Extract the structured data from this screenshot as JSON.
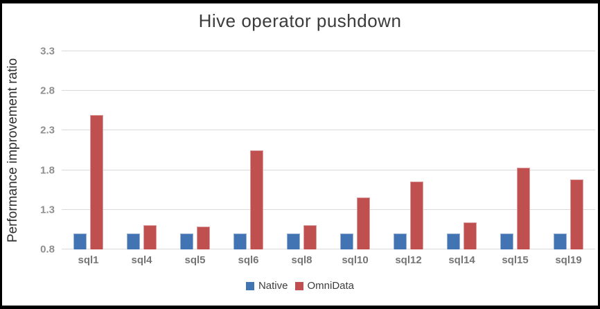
{
  "window": {
    "background": "#ffffff",
    "frame_color": "#000000"
  },
  "chart_data": {
    "type": "bar",
    "title": "Hive operator pushdown",
    "xlabel": "",
    "ylabel": "Performance improvement ratio",
    "categories": [
      "sql1",
      "sql4",
      "sql5",
      "sql6",
      "sql8",
      "sql10",
      "sql12",
      "sql14",
      "sql15",
      "sql19"
    ],
    "series": [
      {
        "name": "Native",
        "color": "#4273b3",
        "values": [
          1.0,
          1.0,
          1.0,
          1.0,
          1.0,
          1.0,
          1.0,
          1.0,
          1.0,
          1.0
        ]
      },
      {
        "name": "OmniData",
        "color": "#c04f4f",
        "values": [
          2.5,
          1.11,
          1.09,
          2.05,
          1.11,
          1.46,
          1.66,
          1.14,
          1.83,
          1.68
        ]
      }
    ],
    "ylim": [
      0.8,
      3.3
    ],
    "yticks": [
      0.8,
      1.3,
      1.8,
      2.3,
      2.8,
      3.3
    ],
    "grid": true,
    "legend_position": "bottom",
    "colors": {
      "gridline": "#d9d9d9",
      "title_text": "#3b3b3b",
      "tick_text": "#8e8e8e",
      "xlabel_text": "#757575"
    }
  }
}
